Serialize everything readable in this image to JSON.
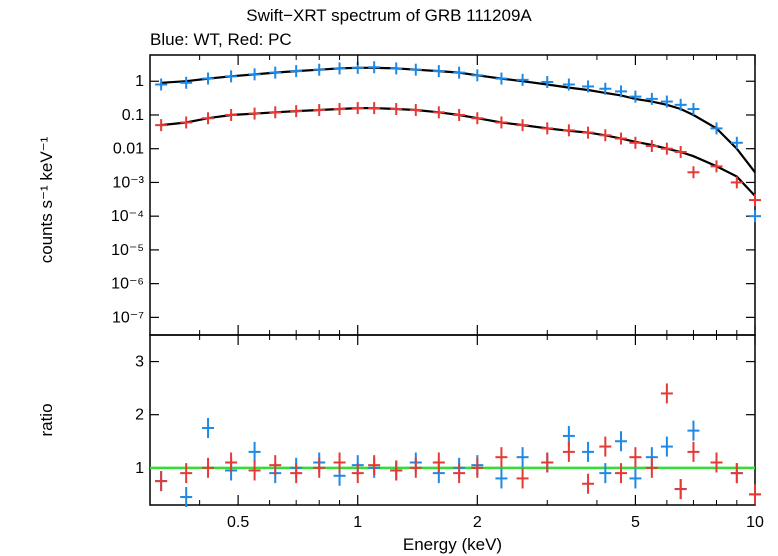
{
  "chart_data": [
    {
      "type": "scatter",
      "title": "Swift−XRT spectrum of GRB 111209A",
      "subtitle": "Blue: WT, Red: PC",
      "xlabel": "Energy (keV)",
      "ylabel": "counts s⁻¹ keV⁻¹",
      "x_scale": "log",
      "y_scale": "log",
      "xlim": [
        0.3,
        10
      ],
      "ylim": [
        3e-08,
        6
      ],
      "y_ticks": [
        {
          "value": 1,
          "label": "1"
        },
        {
          "value": 0.1,
          "label": "0.1"
        },
        {
          "value": 0.01,
          "label": "0.01"
        },
        {
          "value": 0.001,
          "label": "10⁻³"
        },
        {
          "value": 0.0001,
          "label": "10⁻⁴"
        },
        {
          "value": 1e-05,
          "label": "10⁻⁵"
        },
        {
          "value": 1e-06,
          "label": "10⁻⁶"
        },
        {
          "value": 1e-07,
          "label": "10⁻⁷"
        }
      ],
      "series": [
        {
          "color": "#1e88e5",
          "x": [
            0.32,
            0.37,
            0.42,
            0.48,
            0.55,
            0.62,
            0.7,
            0.8,
            0.9,
            1.0,
            1.1,
            1.25,
            1.4,
            1.6,
            1.8,
            2.0,
            2.3,
            2.6,
            3.0,
            3.4,
            3.8,
            4.2,
            4.6,
            5.0,
            5.5,
            6.0,
            6.5,
            7.0,
            8.0,
            9.0,
            10.0
          ],
          "y": [
            0.8,
            0.9,
            1.2,
            1.4,
            1.6,
            1.8,
            2.0,
            2.2,
            2.4,
            2.5,
            2.6,
            2.4,
            2.2,
            2.0,
            1.8,
            1.5,
            1.2,
            1.1,
            0.95,
            0.8,
            0.7,
            0.6,
            0.5,
            0.35,
            0.3,
            0.25,
            0.2,
            0.15,
            0.04,
            0.015,
            0.0001
          ],
          "model": [
            0.9,
            1.0,
            1.2,
            1.4,
            1.6,
            1.8,
            2.0,
            2.2,
            2.4,
            2.5,
            2.5,
            2.4,
            2.2,
            2.0,
            1.8,
            1.5,
            1.2,
            1.0,
            0.8,
            0.65,
            0.55,
            0.45,
            0.38,
            0.3,
            0.25,
            0.2,
            0.15,
            0.1,
            0.04,
            0.01,
            0.002
          ]
        },
        {
          "color": "#e53935",
          "x": [
            0.32,
            0.37,
            0.42,
            0.48,
            0.55,
            0.62,
            0.7,
            0.8,
            0.9,
            1.0,
            1.1,
            1.25,
            1.4,
            1.6,
            1.8,
            2.0,
            2.3,
            2.6,
            3.0,
            3.4,
            3.8,
            4.2,
            4.6,
            5.0,
            5.5,
            6.0,
            6.5,
            7.0,
            8.0,
            9.0,
            10.0
          ],
          "y": [
            0.05,
            0.06,
            0.08,
            0.1,
            0.11,
            0.12,
            0.13,
            0.14,
            0.15,
            0.16,
            0.16,
            0.15,
            0.14,
            0.12,
            0.1,
            0.08,
            0.06,
            0.05,
            0.04,
            0.035,
            0.03,
            0.025,
            0.02,
            0.015,
            0.012,
            0.01,
            0.008,
            0.002,
            0.003,
            0.001,
            0.0003
          ],
          "model": [
            0.05,
            0.06,
            0.08,
            0.1,
            0.11,
            0.12,
            0.13,
            0.14,
            0.15,
            0.16,
            0.16,
            0.15,
            0.14,
            0.12,
            0.1,
            0.08,
            0.06,
            0.05,
            0.04,
            0.034,
            0.03,
            0.025,
            0.02,
            0.016,
            0.013,
            0.01,
            0.008,
            0.006,
            0.003,
            0.0015,
            0.0004
          ]
        }
      ]
    },
    {
      "type": "scatter",
      "xlabel": "Energy (keV)",
      "ylabel": "ratio",
      "x_scale": "log",
      "xlim": [
        0.3,
        10
      ],
      "ylim": [
        0.3,
        3.5
      ],
      "x_ticks": [
        {
          "value": 0.5,
          "label": "0.5"
        },
        {
          "value": 1,
          "label": "1"
        },
        {
          "value": 2,
          "label": "2"
        },
        {
          "value": 5,
          "label": "5"
        },
        {
          "value": 10,
          "label": "10"
        }
      ],
      "y_ticks": [
        {
          "value": 1,
          "label": "1"
        },
        {
          "value": 2,
          "label": "2"
        },
        {
          "value": 3,
          "label": "3"
        }
      ],
      "reference_line": {
        "y": 1,
        "color": "#33dd33"
      },
      "series": [
        {
          "color": "#1e88e5",
          "x": [
            0.32,
            0.37,
            0.42,
            0.48,
            0.55,
            0.62,
            0.7,
            0.8,
            0.9,
            1.0,
            1.1,
            1.25,
            1.4,
            1.6,
            1.8,
            2.0,
            2.3,
            2.6,
            3.0,
            3.4,
            3.8,
            4.2,
            4.6,
            5.0,
            5.5,
            6.0,
            6.5,
            7.0,
            8.0,
            9.0,
            10.0
          ],
          "y": [
            0.75,
            0.45,
            1.75,
            0.95,
            1.3,
            0.9,
            1.0,
            1.1,
            0.85,
            1.05,
            1.0,
            0.95,
            1.1,
            0.9,
            1.0,
            1.05,
            0.8,
            1.2,
            1.1,
            1.6,
            1.3,
            0.9,
            1.5,
            0.8,
            1.2,
            1.4,
            0.6,
            1.7,
            1.1,
            0.9,
            0.5
          ]
        },
        {
          "color": "#e53935",
          "x": [
            0.32,
            0.37,
            0.42,
            0.48,
            0.55,
            0.62,
            0.7,
            0.8,
            0.9,
            1.0,
            1.1,
            1.25,
            1.4,
            1.6,
            1.8,
            2.0,
            2.3,
            2.6,
            3.0,
            3.4,
            3.8,
            4.2,
            4.6,
            5.0,
            5.5,
            6.0,
            6.5,
            7.0,
            8.0,
            9.0,
            10.0
          ],
          "y": [
            0.75,
            0.9,
            1.0,
            1.1,
            0.95,
            1.05,
            0.9,
            1.0,
            1.1,
            0.9,
            1.05,
            0.95,
            1.0,
            1.1,
            0.9,
            1.0,
            1.2,
            0.8,
            1.1,
            1.3,
            0.7,
            1.4,
            0.9,
            1.2,
            1.0,
            2.4,
            0.6,
            1.3,
            1.1,
            0.9,
            0.5
          ]
        }
      ]
    }
  ]
}
